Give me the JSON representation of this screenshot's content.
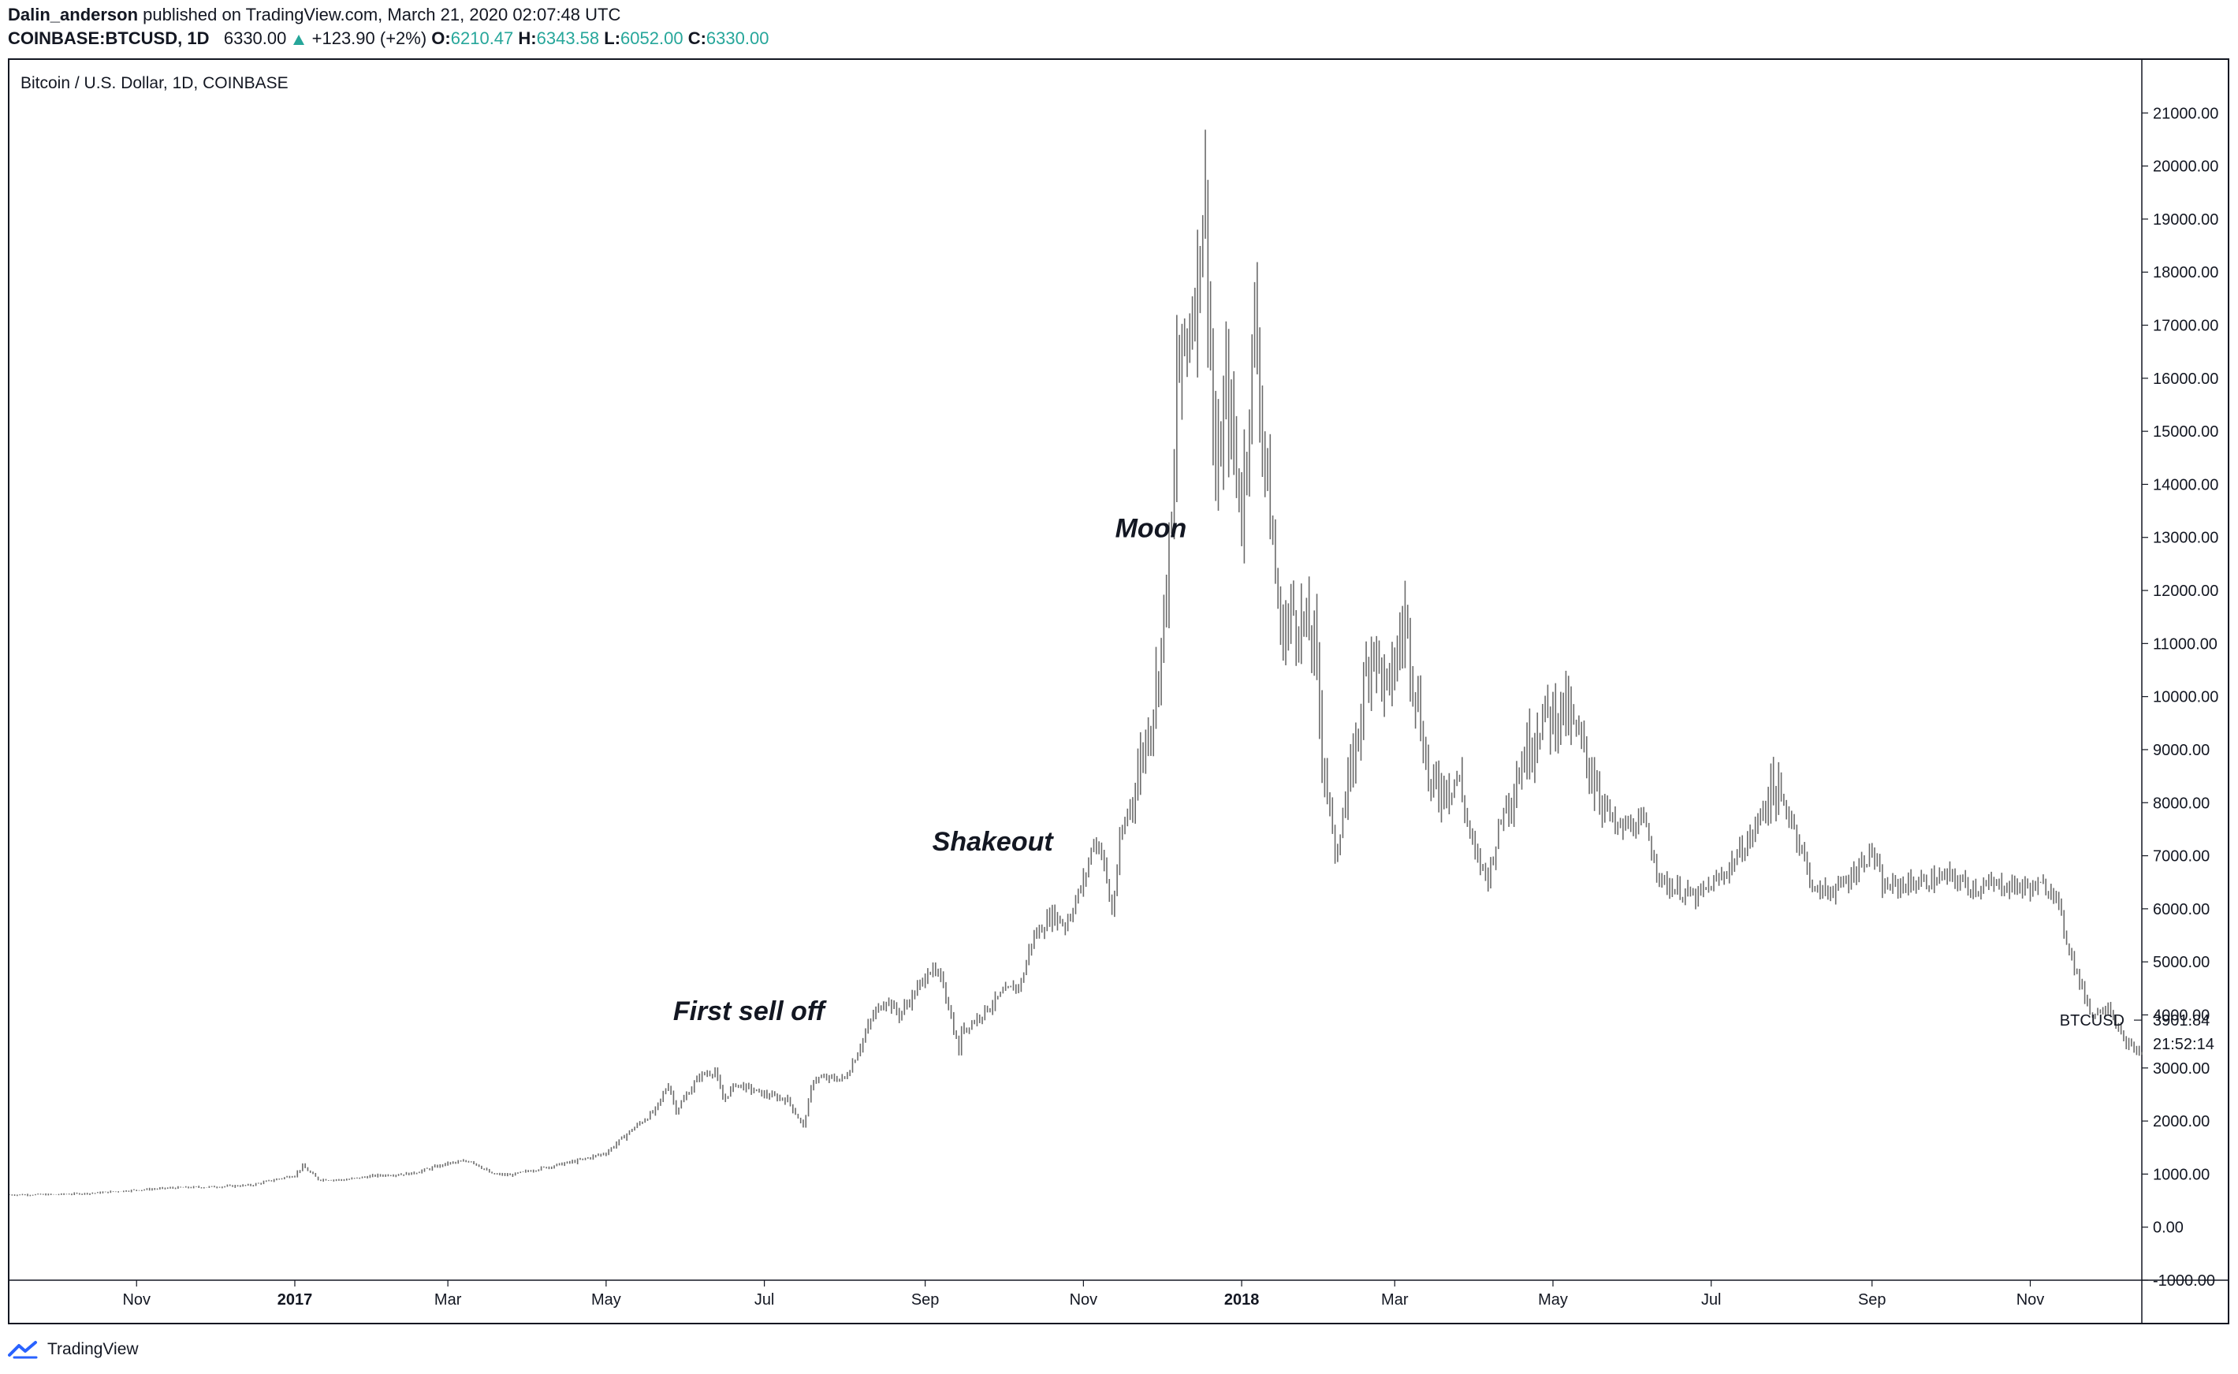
{
  "header": {
    "author": "Dalin_anderson",
    "published_prefix": "published on TradingView.com, March 21, 2020 02:07:48 UTC",
    "symbol": "COINBASE:BTCUSD, 1D",
    "close_value": "6330.00",
    "change": "+123.90 (+2%)",
    "labels": {
      "open": "O:",
      "high": "H:",
      "low": "L:",
      "close": "C:"
    },
    "values": {
      "open": "6210.47",
      "high": "6343.58",
      "low": "6052.00",
      "close": "6330.00"
    }
  },
  "footer": {
    "brand": "TradingView"
  },
  "colors": {
    "candle": "#6b6b6b",
    "axis": "#131722",
    "positive": "#26a69a",
    "logo": "#2962ff"
  },
  "chart_data": {
    "type": "line",
    "title": "Bitcoin / U.S. Dollar, 1D, COINBASE",
    "x_ticks": [
      {
        "label": "Nov",
        "date": "2016-11-01"
      },
      {
        "label": "2017",
        "date": "2017-01-01"
      },
      {
        "label": "Mar",
        "date": "2017-03-01"
      },
      {
        "label": "May",
        "date": "2017-05-01"
      },
      {
        "label": "Jul",
        "date": "2017-07-01"
      },
      {
        "label": "Sep",
        "date": "2017-09-01"
      },
      {
        "label": "Nov",
        "date": "2017-11-01"
      },
      {
        "label": "2018",
        "date": "2018-01-01"
      },
      {
        "label": "Mar",
        "date": "2018-03-01"
      },
      {
        "label": "May",
        "date": "2018-05-01"
      },
      {
        "label": "Jul",
        "date": "2018-07-01"
      },
      {
        "label": "Sep",
        "date": "2018-09-01"
      },
      {
        "label": "Nov",
        "date": "2018-11-01"
      }
    ],
    "y_ticks": [
      "-1000.00",
      "0.00",
      "1000.00",
      "2000.00",
      "3000.00",
      "4000.00",
      "5000.00",
      "6000.00",
      "7000.00",
      "8000.00",
      "9000.00",
      "10000.00",
      "11000.00",
      "12000.00",
      "13000.00",
      "14000.00",
      "15000.00",
      "16000.00",
      "17000.00",
      "18000.00",
      "19000.00",
      "20000.00",
      "21000.00"
    ],
    "ylim": [
      -1000,
      22000
    ],
    "xlim": [
      "2016-09-13",
      "2018-12-14"
    ],
    "price_label": {
      "name": "BTCUSD",
      "value": "3901.84",
      "countdown": "21:52:14"
    },
    "annotations": [
      {
        "text": "First sell off",
        "date": "2017-06-25",
        "value": 3900
      },
      {
        "text": "Shakeout",
        "date": "2017-09-27",
        "value": 7100
      },
      {
        "text": "Moon",
        "date": "2017-11-27",
        "value": 13000
      }
    ],
    "series": [
      {
        "points": [
          [
            "2016-09-13",
            610
          ],
          [
            "2016-10-01",
            615
          ],
          [
            "2016-10-15",
            640
          ],
          [
            "2016-11-01",
            700
          ],
          [
            "2016-11-15",
            740
          ],
          [
            "2016-12-01",
            760
          ],
          [
            "2016-12-15",
            790
          ],
          [
            "2017-01-01",
            980
          ],
          [
            "2017-01-04",
            1150
          ],
          [
            "2017-01-10",
            900
          ],
          [
            "2017-01-20",
            890
          ],
          [
            "2017-02-01",
            970
          ],
          [
            "2017-02-15",
            1010
          ],
          [
            "2017-03-01",
            1200
          ],
          [
            "2017-03-10",
            1250
          ],
          [
            "2017-03-18",
            1000
          ],
          [
            "2017-03-25",
            980
          ],
          [
            "2017-04-05",
            1100
          ],
          [
            "2017-04-20",
            1250
          ],
          [
            "2017-05-01",
            1400
          ],
          [
            "2017-05-10",
            1800
          ],
          [
            "2017-05-20",
            2200
          ],
          [
            "2017-05-25",
            2700
          ],
          [
            "2017-05-28",
            2200
          ],
          [
            "2017-06-06",
            2850
          ],
          [
            "2017-06-12",
            2950
          ],
          [
            "2017-06-15",
            2400
          ],
          [
            "2017-06-20",
            2700
          ],
          [
            "2017-07-01",
            2500
          ],
          [
            "2017-07-10",
            2400
          ],
          [
            "2017-07-16",
            1900
          ],
          [
            "2017-07-20",
            2800
          ],
          [
            "2017-08-01",
            2800
          ],
          [
            "2017-08-05",
            3200
          ],
          [
            "2017-08-12",
            4000
          ],
          [
            "2017-08-17",
            4300
          ],
          [
            "2017-08-22",
            4000
          ],
          [
            "2017-09-01",
            4700
          ],
          [
            "2017-09-02",
            4900
          ],
          [
            "2017-09-08",
            4600
          ],
          [
            "2017-09-14",
            3300
          ],
          [
            "2017-09-15",
            3700
          ],
          [
            "2017-09-20",
            3900
          ],
          [
            "2017-10-01",
            4400
          ],
          [
            "2017-10-08",
            4600
          ],
          [
            "2017-10-12",
            5400
          ],
          [
            "2017-10-20",
            5900
          ],
          [
            "2017-10-25",
            5700
          ],
          [
            "2017-11-01",
            6500
          ],
          [
            "2017-11-05",
            7300
          ],
          [
            "2017-11-08",
            7100
          ],
          [
            "2017-11-12",
            5900
          ],
          [
            "2017-11-15",
            7200
          ],
          [
            "2017-11-20",
            8200
          ],
          [
            "2017-11-26",
            9400
          ],
          [
            "2017-11-29",
            10200
          ],
          [
            "2017-12-01",
            11000
          ],
          [
            "2017-12-06",
            13800
          ],
          [
            "2017-12-07",
            16500
          ],
          [
            "2017-12-08",
            16000
          ],
          [
            "2017-12-12",
            17100
          ],
          [
            "2017-12-15",
            18000
          ],
          [
            "2017-12-17",
            19400
          ],
          [
            "2017-12-18",
            19200
          ],
          [
            "2017-12-20",
            16500
          ],
          [
            "2017-12-22",
            13800
          ],
          [
            "2017-12-26",
            15800
          ],
          [
            "2018-01-01",
            13500
          ],
          [
            "2018-01-06",
            17100
          ],
          [
            "2018-01-10",
            14500
          ],
          [
            "2018-01-16",
            11200
          ],
          [
            "2018-01-21",
            11600
          ],
          [
            "2018-01-29",
            11000
          ],
          [
            "2018-02-01",
            9100
          ],
          [
            "2018-02-06",
            7000
          ],
          [
            "2018-02-12",
            8500
          ],
          [
            "2018-02-20",
            11100
          ],
          [
            "2018-02-26",
            10000
          ],
          [
            "2018-03-05",
            11500
          ],
          [
            "2018-03-15",
            8200
          ],
          [
            "2018-03-25",
            8500
          ],
          [
            "2018-04-01",
            7000
          ],
          [
            "2018-04-06",
            6600
          ],
          [
            "2018-04-12",
            7900
          ],
          [
            "2018-04-25",
            9500
          ],
          [
            "2018-05-05",
            9800
          ],
          [
            "2018-05-15",
            8700
          ],
          [
            "2018-05-25",
            7500
          ],
          [
            "2018-06-05",
            7600
          ],
          [
            "2018-06-12",
            6500
          ],
          [
            "2018-06-25",
            6200
          ],
          [
            "2018-07-05",
            6600
          ],
          [
            "2018-07-17",
            7400
          ],
          [
            "2018-07-24",
            8300
          ],
          [
            "2018-08-01",
            7700
          ],
          [
            "2018-08-10",
            6300
          ],
          [
            "2018-08-20",
            6400
          ],
          [
            "2018-09-01",
            7100
          ],
          [
            "2018-09-05",
            6400
          ],
          [
            "2018-09-20",
            6500
          ],
          [
            "2018-10-01",
            6600
          ],
          [
            "2018-10-10",
            6400
          ],
          [
            "2018-10-20",
            6450
          ],
          [
            "2018-11-01",
            6400
          ],
          [
            "2018-11-10",
            6400
          ],
          [
            "2018-11-14",
            5600
          ],
          [
            "2018-11-20",
            4600
          ],
          [
            "2018-11-25",
            4000
          ],
          [
            "2018-12-01",
            4200
          ],
          [
            "2018-12-07",
            3500
          ],
          [
            "2018-12-14",
            3250
          ]
        ]
      }
    ]
  }
}
